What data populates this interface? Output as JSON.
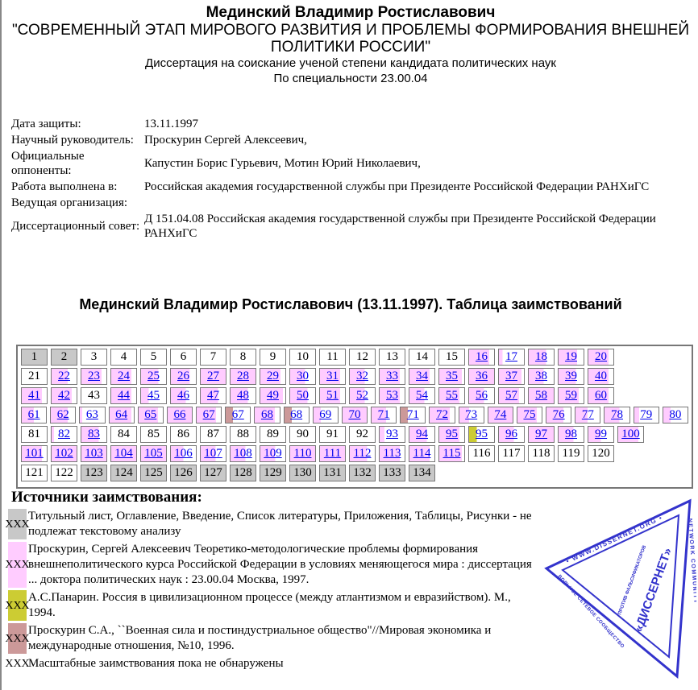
{
  "header": {
    "author": "Мединский Владимир Ростиславович",
    "title": "\"СОВРЕМЕННЫЙ ЭТАП МИРОВОГО РАЗВИТИЯ И ПРОБЛЕМЫ ФОРМИРОВАНИЯ ВНЕШНЕЙ ПОЛИТИКИ РОССИИ\"",
    "degree": "Диссертация на соискание ученой степени кандидата политических наук",
    "specialty": "По специальности 23.00.04"
  },
  "meta": [
    {
      "label": "Дата защиты:",
      "value": "13.11.1997"
    },
    {
      "label": "Научный руководитель:",
      "value": "Проскурин Сергей Алексеевич,"
    },
    {
      "label": "Официальные оппоненты:",
      "value": "Капустин Борис Гурьевич, Мотин Юрий Николаевич,"
    },
    {
      "label": "Работа выполнена в:",
      "value": "Российская академия государственной службы при Президенте Российской Федерации РАНХиГС"
    },
    {
      "label": "Ведущая организация:",
      "value": ""
    },
    {
      "label": "Диссертационный совет:",
      "value": "Д 151.04.08 Российская академия государственной службы при Президенте Российской Федерации РАНХиГС"
    }
  ],
  "table_title": "Мединский Владимир Ростиславович (13.11.1997). Таблица заимствований",
  "colors": {
    "g": "#c8c8c8",
    "p": "#ffccff",
    "y": "#cccc33",
    "b": "#cc9999",
    "w": "#ffffff"
  },
  "pages": [
    [
      [
        "1",
        "g"
      ],
      [
        "2",
        "g"
      ],
      [
        "3",
        "w"
      ],
      [
        "4",
        "w"
      ],
      [
        "5",
        "w"
      ],
      [
        "6",
        "w"
      ],
      [
        "7",
        "w"
      ],
      [
        "8",
        "w"
      ],
      [
        "9",
        "w"
      ],
      [
        "10",
        "w"
      ],
      [
        "11",
        "w"
      ],
      [
        "12",
        "w"
      ],
      [
        "13",
        "w"
      ],
      [
        "14",
        "w"
      ],
      [
        "15",
        "w"
      ],
      [
        "16",
        "p",
        0.8
      ],
      [
        "17",
        "p",
        0.15
      ],
      [
        "18",
        "p",
        0.7
      ],
      [
        "19",
        "p",
        0.75
      ],
      [
        "20",
        "p",
        0.8
      ]
    ],
    [
      [
        "21",
        "w"
      ],
      [
        "22",
        "p",
        0.65
      ],
      [
        "23",
        "p",
        0.8
      ],
      [
        "24",
        "p",
        0.8
      ],
      [
        "25",
        "p",
        0.7
      ],
      [
        "26",
        "p",
        0.75
      ],
      [
        "27",
        "p",
        1
      ],
      [
        "28",
        "p",
        1
      ],
      [
        "29",
        "p",
        0.8
      ],
      [
        "30",
        "p",
        0.6
      ],
      [
        "31",
        "p",
        0.8
      ],
      [
        "32",
        "p",
        0.6
      ],
      [
        "33",
        "p",
        0.8
      ],
      [
        "34",
        "p",
        0.8
      ],
      [
        "35",
        "p",
        0.9
      ],
      [
        "36",
        "p",
        1
      ],
      [
        "37",
        "p",
        0.9
      ],
      [
        "38",
        "p",
        0.6
      ],
      [
        "39",
        "p",
        0.7
      ],
      [
        "40",
        "p",
        0.8
      ]
    ],
    [
      [
        "41",
        "p",
        0.8
      ],
      [
        "42",
        "p",
        0.8
      ],
      [
        "43",
        "w"
      ],
      [
        "44",
        "p",
        0.8
      ],
      [
        "45",
        "p",
        0.3
      ],
      [
        "46",
        "p",
        0.6
      ],
      [
        "47",
        "p",
        0.7
      ],
      [
        "48",
        "p",
        0.7
      ],
      [
        "49",
        "p",
        0.9
      ],
      [
        "50",
        "p",
        0.7
      ],
      [
        "51",
        "p",
        0.8
      ],
      [
        "52",
        "p",
        0.6
      ],
      [
        "53",
        "p",
        0.8
      ],
      [
        "54",
        "p",
        0.6
      ],
      [
        "55",
        "p",
        0.8
      ],
      [
        "56",
        "p",
        0.6
      ],
      [
        "57",
        "p",
        0.8
      ],
      [
        "58",
        "p",
        1
      ],
      [
        "59",
        "p",
        0.8
      ],
      [
        "60",
        "p",
        0.8
      ]
    ],
    [
      [
        "61",
        "p",
        0.5
      ],
      [
        "62",
        "p",
        0.7
      ],
      [
        "63",
        "p",
        0.1
      ],
      [
        "64",
        "p",
        0.9
      ],
      [
        "65",
        "p",
        0.8
      ],
      [
        "66",
        "p",
        1
      ],
      [
        "67",
        "p",
        0.8
      ],
      [
        "67",
        "b",
        0.3
      ],
      [
        "68",
        "p",
        0.8
      ],
      [
        "68",
        "b",
        0.3
      ],
      [
        "69",
        "p",
        0.3
      ],
      [
        "70",
        "p",
        1
      ],
      [
        "71",
        "p",
        0.6
      ],
      [
        "71",
        "b",
        0.3
      ],
      [
        "72",
        "p",
        0.8
      ],
      [
        "73",
        "p",
        0.4
      ],
      [
        "74",
        "p",
        1
      ],
      [
        "75",
        "p",
        0.8
      ],
      [
        "76",
        "p",
        0.7
      ],
      [
        "77",
        "p",
        0.5
      ],
      [
        "78",
        "p",
        0.6
      ],
      [
        "79",
        "p",
        0.2
      ],
      [
        "80",
        "p",
        0.3
      ]
    ],
    [
      [
        "81",
        "w"
      ],
      [
        "82",
        "p",
        0.1
      ],
      [
        "83",
        "p",
        0.7
      ],
      [
        "84",
        "w"
      ],
      [
        "85",
        "w"
      ],
      [
        "86",
        "w"
      ],
      [
        "87",
        "w"
      ],
      [
        "88",
        "w"
      ],
      [
        "89",
        "w"
      ],
      [
        "90",
        "w"
      ],
      [
        "91",
        "w"
      ],
      [
        "92",
        "w"
      ],
      [
        "93",
        "p",
        0.2
      ],
      [
        "94",
        "p",
        0.7
      ],
      [
        "95",
        "p",
        0.8
      ],
      [
        "95",
        "y",
        0.3
      ],
      [
        "96",
        "p",
        0.6
      ],
      [
        "97",
        "p",
        1
      ],
      [
        "98",
        "p",
        0.6
      ],
      [
        "99",
        "p",
        0.5
      ],
      [
        "100",
        "p",
        0.8
      ]
    ],
    [
      [
        "101",
        "p",
        0.8
      ],
      [
        "102",
        "p",
        1
      ],
      [
        "103",
        "p",
        1
      ],
      [
        "104",
        "p",
        1
      ],
      [
        "105",
        "p",
        1
      ],
      [
        "106",
        "p",
        0.5
      ],
      [
        "107",
        "p",
        0.6
      ],
      [
        "108",
        "p",
        0.6
      ],
      [
        "109",
        "p",
        0.6
      ],
      [
        "110",
        "p",
        1
      ],
      [
        "111",
        "p",
        1
      ],
      [
        "112",
        "p",
        0.7
      ],
      [
        "113",
        "p",
        0.8
      ],
      [
        "114",
        "p",
        0.8
      ],
      [
        "115",
        "p",
        0.9
      ],
      [
        "116",
        "w"
      ],
      [
        "117",
        "w"
      ],
      [
        "118",
        "w"
      ],
      [
        "119",
        "w"
      ],
      [
        "120",
        "w"
      ]
    ],
    [
      [
        "121",
        "w"
      ],
      [
        "122",
        "w"
      ],
      [
        "123",
        "g"
      ],
      [
        "124",
        "g"
      ],
      [
        "125",
        "g"
      ],
      [
        "126",
        "g"
      ],
      [
        "127",
        "g"
      ],
      [
        "128",
        "g"
      ],
      [
        "129",
        "g"
      ],
      [
        "130",
        "g"
      ],
      [
        "131",
        "g"
      ],
      [
        "132",
        "g"
      ],
      [
        "133",
        "g"
      ],
      [
        "134",
        "g"
      ]
    ]
  ],
  "sources_title": "Источники заимствования:",
  "legend": [
    {
      "swatch": "XXX",
      "type": "g",
      "text": "Титульный лист, Оглавление, Введение, Список литературы, Приложения, Таблицы, Рисунки - не подлежат текстовому анализу"
    },
    {
      "swatch": "XXX",
      "type": "p",
      "text": "Проскурин, Сергей Алексеевич Теоретико-методологические проблемы формирования внешнеполитического курса Российской Федерации в условиях меняющегося мира : диссертация ... доктора политических наук : 23.00.04 Москва, 1997."
    },
    {
      "swatch": "XXX",
      "type": "y",
      "text": "А.С.Панарин. Россия в цивилизационном процессе (между атлантизмом и евразийством). М., 1994."
    },
    {
      "swatch": "XXX",
      "type": "b",
      "text": "Проскурин С.А., ``Военная сила и постиндустриальное общество\"//Мировая экономика и международные отношения, №10, 1996."
    },
    {
      "swatch": "XXX",
      "type": "w",
      "text": "Масштабные заимствования пока не обнаружены"
    }
  ],
  "stamp": {
    "url": "WWW.DISSERNET.ORG",
    "community": "NETWORK COMMUNITY",
    "ru": "ВОЛЬНОЕ СЕТЕВОЕ СООБЩЕСТВО",
    "motto": "ПРОТИВ ФАЛЬСИФИКАТОРОВ, МОДЕЛЬЕРОВ И ЛЖЕЦОВ",
    "name": "«ДИССЕРНЕТ»",
    "color": "#3333cc"
  }
}
